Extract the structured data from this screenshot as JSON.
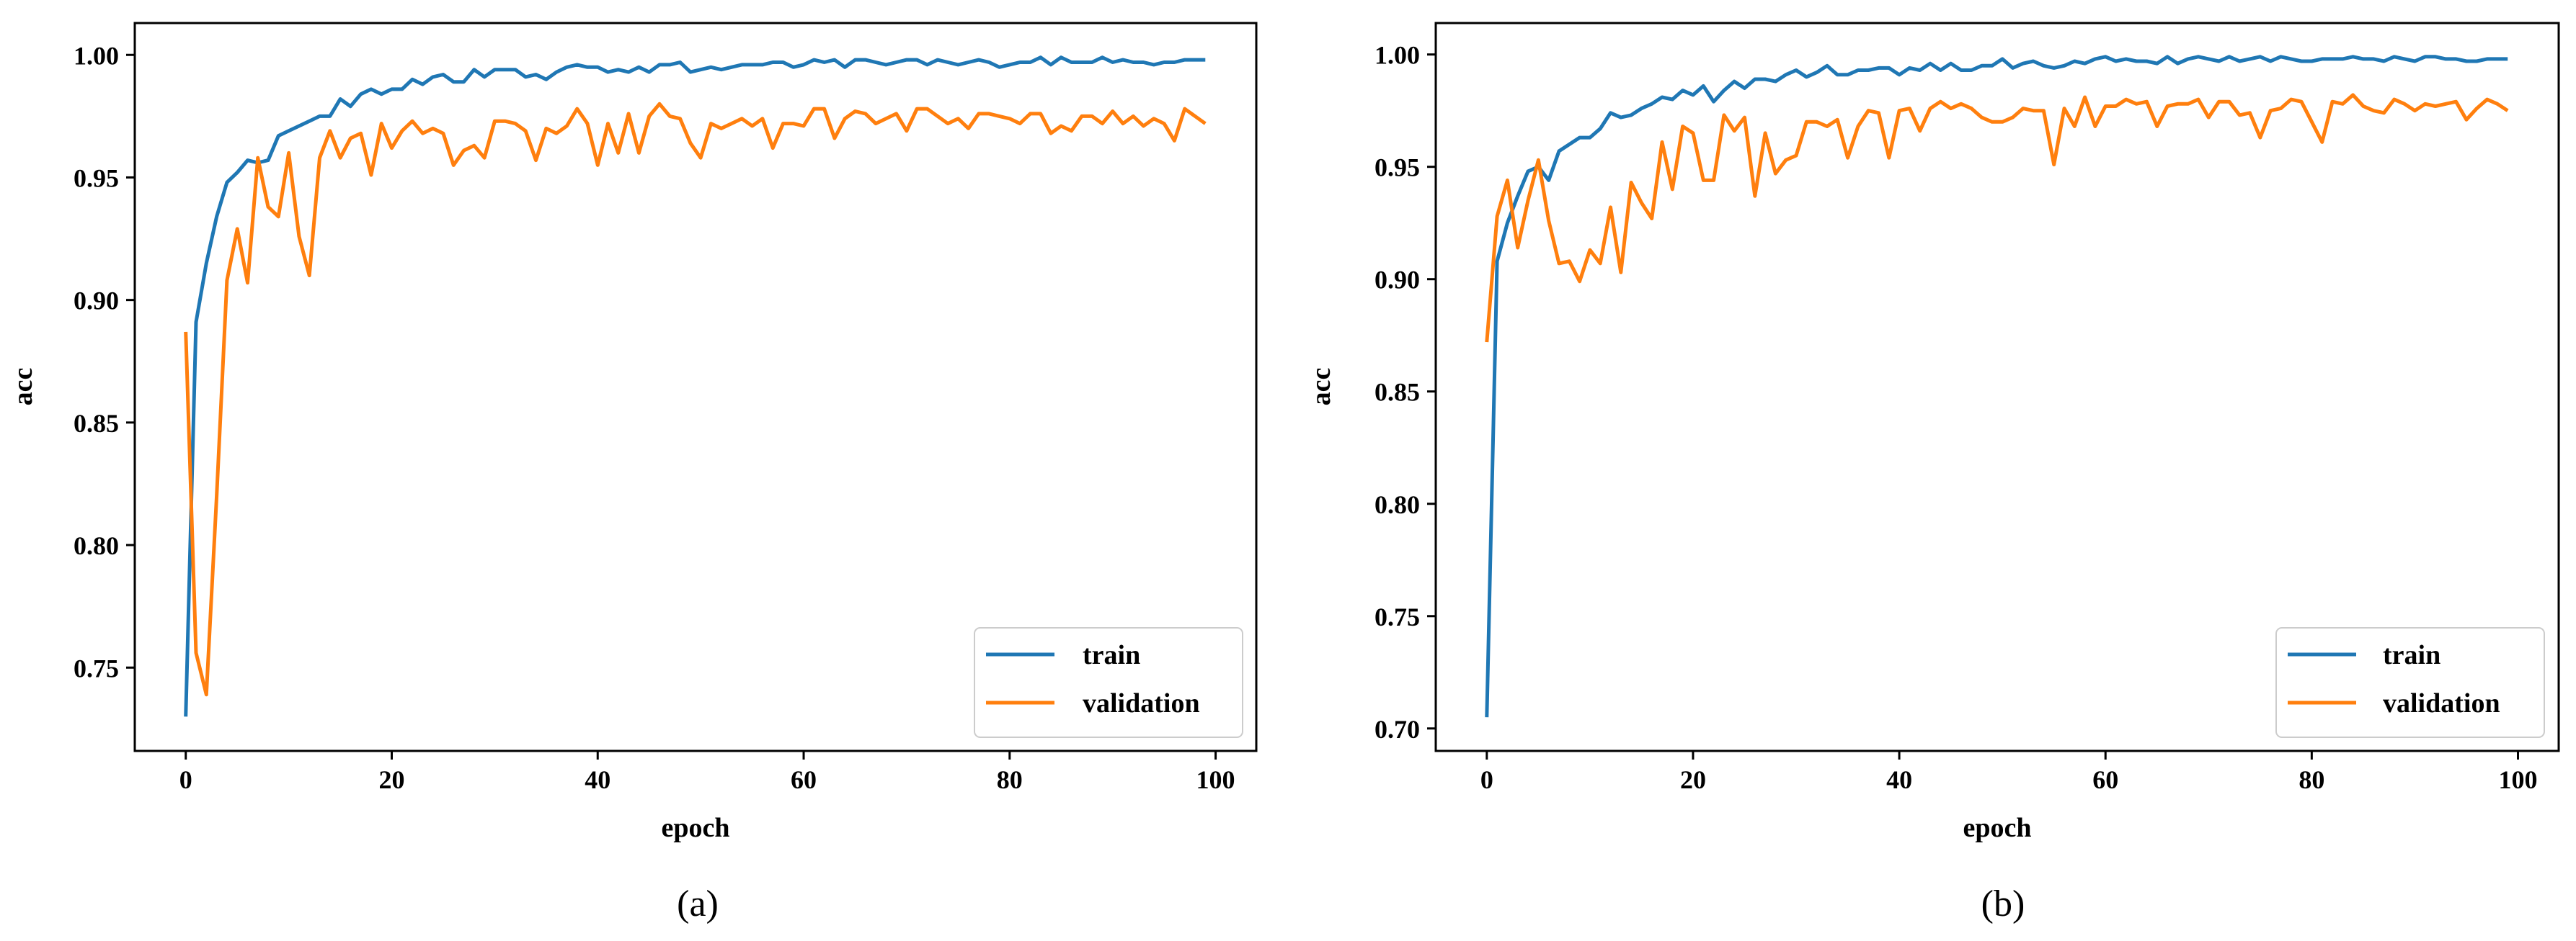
{
  "chart_data": [
    {
      "type": "line",
      "caption": "(a)",
      "xlabel": "epoch",
      "ylabel": "acc",
      "xlim": [
        -4.95,
        103.95
      ],
      "ylim": [
        0.716,
        1.013
      ],
      "xticks": [
        0,
        20,
        40,
        60,
        80,
        100
      ],
      "xtick_labels": [
        "0",
        "20",
        "40",
        "60",
        "80",
        "100"
      ],
      "yticks": [
        0.75,
        0.8,
        0.85,
        0.9,
        0.95,
        1.0
      ],
      "ytick_labels": [
        "0.75",
        "0.80",
        "0.85",
        "0.90",
        "0.95",
        "1.00"
      ],
      "legend_position": "lower-right",
      "series": [
        {
          "name": "train",
          "color": "#1f77b4",
          "values": [
            0.73,
            0.891,
            0.915,
            0.934,
            0.948,
            0.952,
            0.957,
            0.956,
            0.957,
            0.967,
            0.969,
            0.971,
            0.973,
            0.975,
            0.975,
            0.982,
            0.979,
            0.984,
            0.986,
            0.984,
            0.986,
            0.986,
            0.99,
            0.988,
            0.991,
            0.992,
            0.989,
            0.989,
            0.994,
            0.991,
            0.994,
            0.994,
            0.994,
            0.991,
            0.992,
            0.99,
            0.993,
            0.995,
            0.996,
            0.995,
            0.995,
            0.993,
            0.994,
            0.993,
            0.995,
            0.993,
            0.996,
            0.996,
            0.997,
            0.993,
            0.994,
            0.995,
            0.994,
            0.995,
            0.996,
            0.996,
            0.996,
            0.997,
            0.997,
            0.995,
            0.996,
            0.998,
            0.997,
            0.998,
            0.995,
            0.998,
            0.998,
            0.997,
            0.996,
            0.997,
            0.998,
            0.998,
            0.996,
            0.998,
            0.997,
            0.996,
            0.997,
            0.998,
            0.997,
            0.995,
            0.996,
            0.997,
            0.997,
            0.999,
            0.996,
            0.999,
            0.997,
            0.997,
            0.997,
            0.999,
            0.997,
            0.998,
            0.997,
            0.997,
            0.996,
            0.997,
            0.997,
            0.998,
            0.998,
            0.998
          ]
        },
        {
          "name": "validation",
          "color": "#ff7f0e",
          "values": [
            0.887,
            0.756,
            0.739,
            0.82,
            0.908,
            0.929,
            0.907,
            0.958,
            0.938,
            0.934,
            0.96,
            0.926,
            0.91,
            0.958,
            0.969,
            0.958,
            0.966,
            0.968,
            0.951,
            0.972,
            0.962,
            0.969,
            0.973,
            0.968,
            0.97,
            0.968,
            0.955,
            0.961,
            0.963,
            0.958,
            0.973,
            0.973,
            0.972,
            0.969,
            0.957,
            0.97,
            0.968,
            0.971,
            0.978,
            0.972,
            0.955,
            0.972,
            0.96,
            0.976,
            0.96,
            0.975,
            0.98,
            0.975,
            0.974,
            0.964,
            0.958,
            0.972,
            0.97,
            0.972,
            0.974,
            0.971,
            0.974,
            0.962,
            0.972,
            0.972,
            0.971,
            0.978,
            0.978,
            0.966,
            0.974,
            0.977,
            0.976,
            0.972,
            0.974,
            0.976,
            0.969,
            0.978,
            0.978,
            0.975,
            0.972,
            0.974,
            0.97,
            0.976,
            0.976,
            0.975,
            0.974,
            0.972,
            0.976,
            0.976,
            0.968,
            0.971,
            0.969,
            0.975,
            0.975,
            0.972,
            0.977,
            0.972,
            0.975,
            0.971,
            0.974,
            0.972,
            0.965,
            0.978,
            0.975,
            0.972
          ]
        }
      ]
    },
    {
      "type": "line",
      "caption": "(b)",
      "xlabel": "epoch",
      "ylabel": "acc",
      "xlim": [
        -4.95,
        103.95
      ],
      "ylim": [
        0.69,
        1.014
      ],
      "xticks": [
        0,
        20,
        40,
        60,
        80,
        100
      ],
      "xtick_labels": [
        "0",
        "20",
        "40",
        "60",
        "80",
        "100"
      ],
      "yticks": [
        0.7,
        0.75,
        0.8,
        0.85,
        0.9,
        0.95,
        1.0
      ],
      "ytick_labels": [
        "0.70",
        "0.75",
        "0.80",
        "0.85",
        "0.90",
        "0.95",
        "1.00"
      ],
      "legend_position": "lower-right",
      "series": [
        {
          "name": "train",
          "color": "#1f77b4",
          "values": [
            0.705,
            0.908,
            0.925,
            0.937,
            0.948,
            0.95,
            0.944,
            0.957,
            0.96,
            0.963,
            0.963,
            0.967,
            0.974,
            0.972,
            0.973,
            0.976,
            0.978,
            0.981,
            0.98,
            0.984,
            0.982,
            0.986,
            0.979,
            0.984,
            0.988,
            0.985,
            0.989,
            0.989,
            0.988,
            0.991,
            0.993,
            0.99,
            0.992,
            0.995,
            0.991,
            0.991,
            0.993,
            0.993,
            0.994,
            0.994,
            0.991,
            0.994,
            0.993,
            0.996,
            0.993,
            0.996,
            0.993,
            0.993,
            0.995,
            0.995,
            0.998,
            0.994,
            0.996,
            0.997,
            0.995,
            0.994,
            0.995,
            0.997,
            0.996,
            0.998,
            0.999,
            0.997,
            0.998,
            0.997,
            0.997,
            0.996,
            0.999,
            0.996,
            0.998,
            0.999,
            0.998,
            0.997,
            0.999,
            0.997,
            0.998,
            0.999,
            0.997,
            0.999,
            0.998,
            0.997,
            0.997,
            0.998,
            0.998,
            0.998,
            0.999,
            0.998,
            0.998,
            0.997,
            0.999,
            0.998,
            0.997,
            0.999,
            0.999,
            0.998,
            0.998,
            0.997,
            0.997,
            0.998,
            0.998,
            0.998
          ]
        },
        {
          "name": "validation",
          "color": "#ff7f0e",
          "values": [
            0.872,
            0.928,
            0.944,
            0.914,
            0.935,
            0.953,
            0.926,
            0.907,
            0.908,
            0.899,
            0.913,
            0.907,
            0.932,
            0.903,
            0.943,
            0.934,
            0.927,
            0.961,
            0.94,
            0.968,
            0.965,
            0.944,
            0.944,
            0.973,
            0.966,
            0.972,
            0.937,
            0.965,
            0.947,
            0.953,
            0.955,
            0.97,
            0.97,
            0.968,
            0.971,
            0.954,
            0.968,
            0.975,
            0.974,
            0.954,
            0.975,
            0.976,
            0.966,
            0.976,
            0.979,
            0.976,
            0.978,
            0.976,
            0.972,
            0.97,
            0.97,
            0.972,
            0.976,
            0.975,
            0.975,
            0.951,
            0.976,
            0.968,
            0.981,
            0.968,
            0.977,
            0.977,
            0.98,
            0.978,
            0.979,
            0.968,
            0.977,
            0.978,
            0.978,
            0.98,
            0.972,
            0.979,
            0.979,
            0.973,
            0.974,
            0.963,
            0.975,
            0.976,
            0.98,
            0.979,
            0.97,
            0.961,
            0.979,
            0.978,
            0.982,
            0.977,
            0.975,
            0.974,
            0.98,
            0.978,
            0.975,
            0.978,
            0.977,
            0.978,
            0.979,
            0.971,
            0.976,
            0.98,
            0.978,
            0.975
          ]
        }
      ]
    }
  ]
}
